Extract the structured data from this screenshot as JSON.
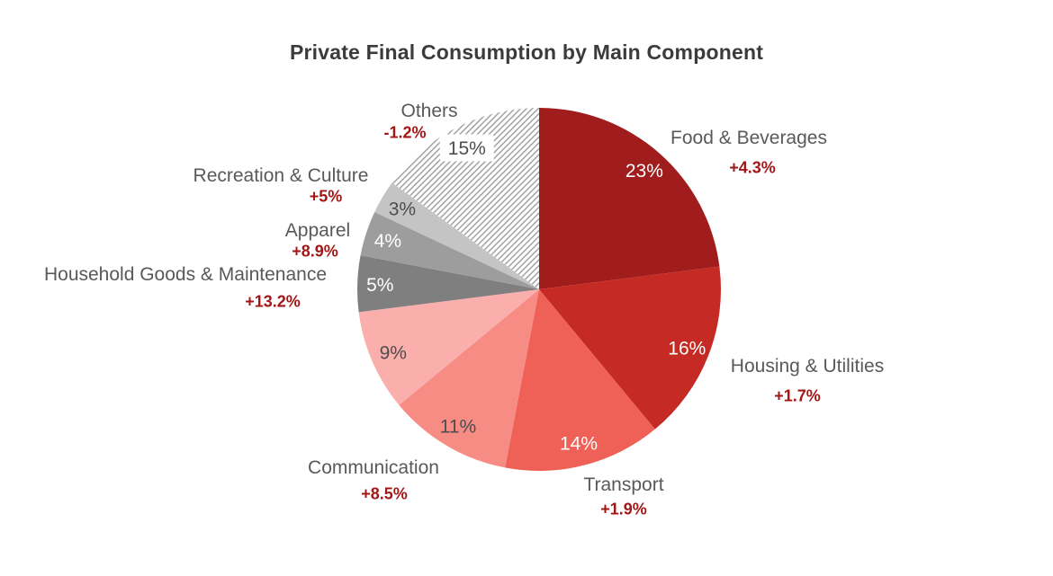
{
  "title": "Private Final Consumption by Main Component",
  "chart_data": {
    "type": "pie",
    "title": "Private Final Consumption by Main Component",
    "start_angle_deg": 0,
    "direction": "clockwise",
    "units": "percent of total, with year-over-year change annotation",
    "slices": [
      {
        "name": "Food & Beverages",
        "value": 23,
        "slice_label": "23%",
        "change": "+4.3%",
        "color": "#A11C1C",
        "value_label_color": "#FFFFFF",
        "hatched": false,
        "label_box": false
      },
      {
        "name": "Housing & Utilities",
        "value": 16,
        "slice_label": "16%",
        "change": "+1.7%",
        "color": "#C52B24",
        "value_label_color": "#FFFFFF",
        "hatched": false,
        "label_box": false
      },
      {
        "name": "Transport",
        "value": 14,
        "slice_label": "14%",
        "change": "+1.9%",
        "color": "#EF6156",
        "value_label_color": "#FFFFFF",
        "hatched": false,
        "label_box": false
      },
      {
        "name": "Communication",
        "value": 11,
        "slice_label": "11%",
        "change": "+8.5%",
        "color": "#F68C84",
        "value_label_color": "#4D4D4D",
        "hatched": false,
        "label_box": false
      },
      {
        "name": "",
        "value": 9,
        "slice_label": "9%",
        "change": "",
        "color": "#FAAFAD",
        "value_label_color": "#4D4D4D",
        "hatched": false,
        "label_box": false
      },
      {
        "name": "Household Goods & Maintenance",
        "value": 5,
        "slice_label": "5%",
        "change": "+13.2%",
        "color": "#7F7F7F",
        "value_label_color": "#FFFFFF",
        "hatched": false,
        "label_box": false
      },
      {
        "name": "Apparel",
        "value": 4,
        "slice_label": "4%",
        "change": "+8.9%",
        "color": "#9D9D9D",
        "value_label_color": "#FFFFFF",
        "hatched": false,
        "label_box": false
      },
      {
        "name": "Recreation & Culture",
        "value": 3,
        "slice_label": "3%",
        "change": "+5%",
        "color": "#C4C4C4",
        "value_label_color": "#4D4D4D",
        "hatched": false,
        "label_box": false
      },
      {
        "name": "Others",
        "value": 15,
        "slice_label": "15%",
        "change": "-1.2%",
        "color": "#FFFFFF",
        "value_label_color": "#4D4D4D",
        "hatched": true,
        "label_box": true
      }
    ],
    "colors": {
      "accent_red": "#A31616",
      "label_gray": "#58595B",
      "title_gray": "#3B3B3B",
      "hatch_line": "#9B9B9B",
      "background": "#FFFFFF"
    },
    "legend": "none",
    "grid": false
  }
}
